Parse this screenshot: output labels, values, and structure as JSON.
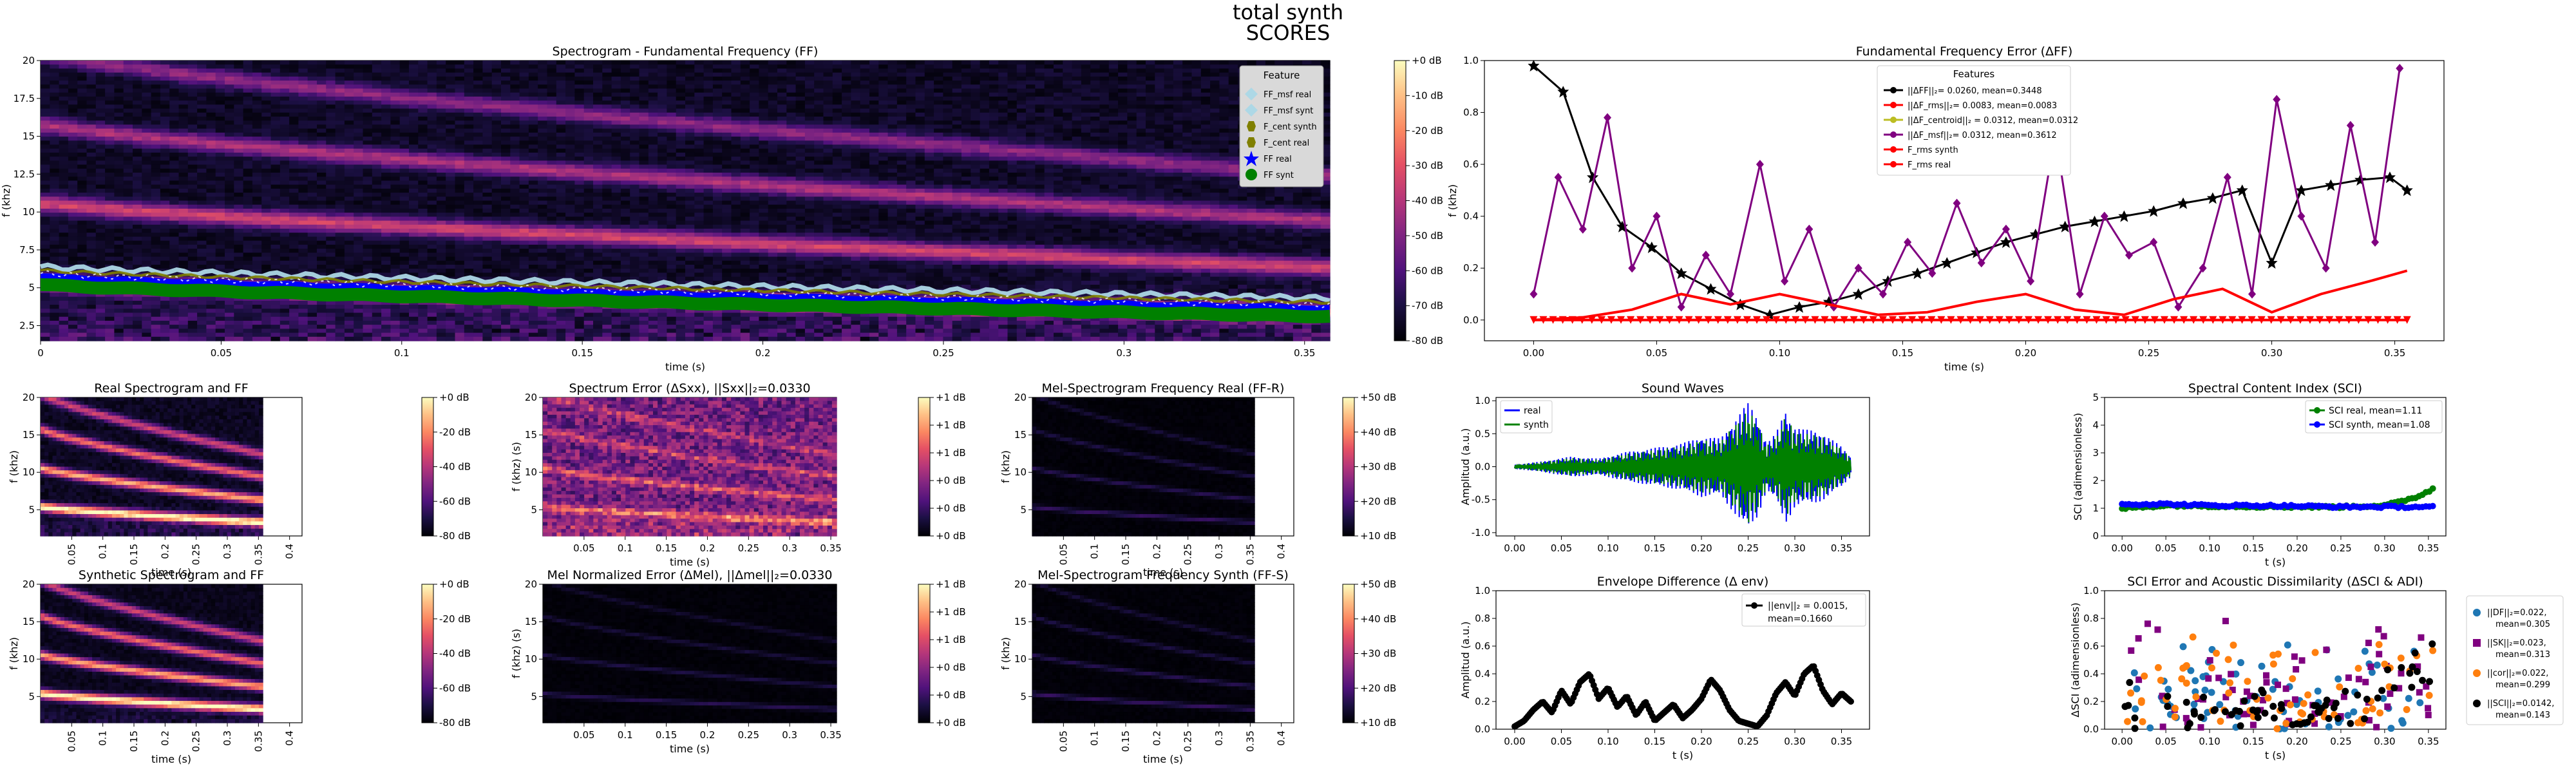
{
  "figure": {
    "title_line1": "total synth",
    "title_line2": "SCORES"
  },
  "colors": {
    "black": "#000000",
    "red": "#ff0000",
    "purple": "#800080",
    "yellow": "#bcbd22",
    "blue": "#0000ff",
    "green": "#008000",
    "lightblue": "#add8e6",
    "olive": "#808000",
    "c_tab_blue": "#1f77b4",
    "c_tab_orange": "#ff7f0e"
  },
  "chart_data": [
    {
      "id": "spec_main",
      "type": "heatmap",
      "title": "Spectrogram - Fundamental Frequency (FF)",
      "xlabel": "time (s)",
      "ylabel": "f (khz)",
      "xlim": [
        0,
        0.357
      ],
      "ylim": [
        1.5,
        20
      ],
      "xticks": [
        "0",
        "0.05",
        "0.1",
        "0.15",
        "0.2",
        "0.25",
        "0.3",
        "0.35"
      ],
      "yticks": [
        "2.5",
        "5",
        "7.5",
        "10",
        "12.5",
        "15",
        "17.5",
        "20"
      ],
      "colorbar": [
        "+0 dB",
        "-10 dB",
        "-20 dB",
        "-30 dB",
        "-40 dB",
        "-50 dB",
        "-60 dB",
        "-70 dB",
        "-80 dB"
      ],
      "legend_title": "Feature",
      "legend": [
        "FF_msf real",
        "FF_msf synt",
        "F_cent synth",
        "F_cent real",
        "FF real",
        "FF synt"
      ],
      "harmonics_khz": [
        {
          "start": 5.4,
          "end": 3.3
        },
        {
          "start": 10.6,
          "end": 6.3
        },
        {
          "start": 15.8,
          "end": 9.4
        },
        {
          "start": 20.5,
          "end": 12.4
        }
      ]
    },
    {
      "id": "ff_error",
      "type": "line",
      "title": "Fundamental Frequency Error (ΔFF)",
      "xlabel": "time (s)",
      "ylabel": "f (khz)",
      "xlim": [
        -0.02,
        0.37
      ],
      "ylim": [
        -0.08,
        1.0
      ],
      "xticks": [
        "0.00",
        "0.05",
        "0.10",
        "0.15",
        "0.20",
        "0.25",
        "0.30",
        "0.35"
      ],
      "yticks": [
        "0.0",
        "0.2",
        "0.4",
        "0.6",
        "0.8",
        "1.0"
      ],
      "legend_title": "Features",
      "legend": [
        "||ΔFF||₂= 0.0260, mean=0.3448",
        "||ΔF_rms||₂= 0.0083, mean=0.0083",
        "||ΔF_centroid||₂ = 0.0312, mean=0.0312",
        "||ΔF_msf||₂= 0.0312, mean=0.3612",
        "F_rms synth",
        "F_rms real"
      ],
      "series": [
        {
          "name": "||ΔFF||₂= 0.0260, mean=0.3448",
          "x": [
            0.0,
            0.012,
            0.024,
            0.036,
            0.048,
            0.06,
            0.072,
            0.084,
            0.096,
            0.108,
            0.12,
            0.132,
            0.144,
            0.156,
            0.168,
            0.18,
            0.192,
            0.204,
            0.216,
            0.228,
            0.24,
            0.252,
            0.264,
            0.276,
            0.288,
            0.3,
            0.312,
            0.324,
            0.336,
            0.348,
            0.355
          ],
          "y": [
            0.98,
            0.88,
            0.55,
            0.36,
            0.28,
            0.18,
            0.12,
            0.06,
            0.02,
            0.05,
            0.07,
            0.1,
            0.15,
            0.18,
            0.22,
            0.26,
            0.3,
            0.33,
            0.36,
            0.38,
            0.4,
            0.42,
            0.45,
            0.47,
            0.5,
            0.22,
            0.5,
            0.52,
            0.54,
            0.55,
            0.5
          ]
        },
        {
          "name": "||ΔF_msf||₂= 0.0312, mean=0.3612",
          "x": [
            0.0,
            0.01,
            0.02,
            0.03,
            0.04,
            0.05,
            0.06,
            0.07,
            0.08,
            0.092,
            0.102,
            0.112,
            0.122,
            0.132,
            0.142,
            0.152,
            0.162,
            0.172,
            0.182,
            0.192,
            0.202,
            0.212,
            0.222,
            0.232,
            0.242,
            0.252,
            0.262,
            0.272,
            0.282,
            0.292,
            0.302,
            0.312,
            0.322,
            0.332,
            0.342,
            0.352
          ],
          "y": [
            0.1,
            0.55,
            0.35,
            0.78,
            0.2,
            0.4,
            0.05,
            0.25,
            0.1,
            0.6,
            0.15,
            0.35,
            0.05,
            0.2,
            0.1,
            0.3,
            0.18,
            0.45,
            0.22,
            0.35,
            0.15,
            0.72,
            0.1,
            0.4,
            0.25,
            0.3,
            0.05,
            0.2,
            0.55,
            0.1,
            0.85,
            0.4,
            0.2,
            0.75,
            0.3,
            0.97
          ]
        },
        {
          "name": "F_rms real",
          "x": [
            0.0,
            0.02,
            0.04,
            0.06,
            0.08,
            0.1,
            0.12,
            0.14,
            0.16,
            0.18,
            0.2,
            0.22,
            0.24,
            0.26,
            0.28,
            0.3,
            0.32,
            0.34,
            0.355
          ],
          "y": [
            0.0,
            0.01,
            0.04,
            0.1,
            0.06,
            0.1,
            0.06,
            0.02,
            0.03,
            0.07,
            0.1,
            0.04,
            0.02,
            0.08,
            0.12,
            0.03,
            0.1,
            0.15,
            0.19
          ]
        }
      ]
    },
    {
      "id": "spec_real",
      "type": "heatmap",
      "title": "Real Spectrogram and FF",
      "xlabel": "time (s)",
      "ylabel": "f (khz)",
      "xlim": [
        0,
        0.42
      ],
      "ylim": [
        1.5,
        20
      ],
      "xticks": [
        "0.05",
        "0.1",
        "0.15",
        "0.2",
        "0.25",
        "0.3",
        "0.35",
        "0.4"
      ],
      "yticks": [
        "5",
        "10",
        "15",
        "20"
      ],
      "colorbar": [
        "+0 dB",
        "-20 dB",
        "-40 dB",
        "-60 dB",
        "-80 dB"
      ]
    },
    {
      "id": "spec_err",
      "type": "heatmap",
      "title": "Spectrum Error (ΔSxx), ||Sxx||₂=0.0330",
      "xlabel": "time (s)",
      "ylabel": "f (khz) (s)",
      "xlim": [
        0,
        0.357
      ],
      "ylim": [
        1.5,
        20
      ],
      "xticks": [
        "0.05",
        "0.1",
        "0.15",
        "0.2",
        "0.25",
        "0.3",
        "0.35"
      ],
      "yticks": [
        "5",
        "10",
        "15",
        "20"
      ],
      "colorbar": [
        "+1 dB",
        "+1 dB",
        "+1 dB",
        "+0 dB",
        "+0 dB",
        "+0 dB"
      ]
    },
    {
      "id": "mel_real",
      "type": "heatmap",
      "title": "Mel-Spectrogram Frequency Real (FF-R)",
      "xlabel": "time (s)",
      "ylabel": "f (khz)",
      "xlim": [
        0,
        0.42
      ],
      "ylim": [
        1.5,
        20
      ],
      "xticks": [
        "0.05",
        "0.1",
        "0.15",
        "0.2",
        "0.25",
        "0.3",
        "0.35",
        "0.4"
      ],
      "yticks": [
        "5",
        "10",
        "15",
        "20"
      ],
      "colorbar": [
        "+50 dB",
        "+40 dB",
        "+30 dB",
        "+20 dB",
        "+10 dB"
      ]
    },
    {
      "id": "waves",
      "type": "line",
      "title": "Sound Waves",
      "xlabel": "",
      "ylabel": "Amplitud (a.u.)",
      "xlim": [
        -0.02,
        0.38
      ],
      "ylim": [
        -1.05,
        1.05
      ],
      "xticks": [
        "0.00",
        "0.05",
        "0.10",
        "0.15",
        "0.20",
        "0.25",
        "0.30",
        "0.35"
      ],
      "yticks": [
        "-1.0",
        "-0.5",
        "0.0",
        "0.5",
        "1.0"
      ],
      "legend": [
        "real",
        "synth"
      ],
      "envelope": {
        "t": [
          0.0,
          0.03,
          0.06,
          0.09,
          0.12,
          0.15,
          0.18,
          0.2,
          0.22,
          0.24,
          0.25,
          0.26,
          0.27,
          0.28,
          0.29,
          0.3,
          0.31,
          0.32,
          0.33,
          0.34,
          0.35,
          0.36
        ],
        "a": [
          0.03,
          0.08,
          0.15,
          0.12,
          0.22,
          0.28,
          0.35,
          0.45,
          0.42,
          0.78,
          0.95,
          0.75,
          0.35,
          0.5,
          0.85,
          0.6,
          0.55,
          0.55,
          0.5,
          0.4,
          0.3,
          0.15
        ]
      }
    },
    {
      "id": "sci",
      "type": "scatter",
      "title": "Spectral Content Index (SCI)",
      "xlabel": "t (s)",
      "ylabel": "SCI (adimensionless)",
      "xlim": [
        -0.02,
        0.37
      ],
      "ylim": [
        0,
        5
      ],
      "xticks": [
        "0.00",
        "0.05",
        "0.10",
        "0.15",
        "0.20",
        "0.25",
        "0.30",
        "0.35"
      ],
      "yticks": [
        "0",
        "1",
        "2",
        "3",
        "4",
        "5"
      ],
      "series": [
        {
          "name": "SCI real,   mean=1.11",
          "x": [
            0.0,
            0.05,
            0.1,
            0.15,
            0.2,
            0.25,
            0.3,
            0.32,
            0.34,
            0.355
          ],
          "y": [
            1.0,
            1.1,
            1.08,
            1.06,
            1.05,
            1.05,
            1.1,
            1.25,
            1.45,
            1.7
          ]
        },
        {
          "name": "SCI synth, mean=1.08",
          "x": [
            0.0,
            0.05,
            0.1,
            0.15,
            0.2,
            0.25,
            0.3,
            0.355
          ],
          "y": [
            1.15,
            1.15,
            1.1,
            1.1,
            1.08,
            1.05,
            1.05,
            1.05
          ]
        }
      ]
    },
    {
      "id": "spec_synth",
      "type": "heatmap",
      "title": "Synthetic Spectrogram and FF",
      "xlabel": "time (s)",
      "ylabel": "f (khz)",
      "xlim": [
        0,
        0.42
      ],
      "ylim": [
        1.5,
        20
      ],
      "xticks": [
        "0.05",
        "0.1",
        "0.15",
        "0.2",
        "0.25",
        "0.3",
        "0.35",
        "0.4"
      ],
      "yticks": [
        "5",
        "10",
        "15",
        "20"
      ],
      "colorbar": [
        "+0 dB",
        "-20 dB",
        "-40 dB",
        "-60 dB",
        "-80 dB"
      ]
    },
    {
      "id": "mel_err",
      "type": "heatmap",
      "title": "Mel Normalized Error (ΔMel), ||Δmel||₂=0.0330",
      "xlabel": "time (s)",
      "ylabel": "f (khz) (s)",
      "xlim": [
        0,
        0.357
      ],
      "ylim": [
        1.5,
        20
      ],
      "xticks": [
        "0.05",
        "0.1",
        "0.15",
        "0.2",
        "0.25",
        "0.3",
        "0.35"
      ],
      "yticks": [
        "5",
        "10",
        "15",
        "20"
      ],
      "colorbar": [
        "+1 dB",
        "+1 dB",
        "+1 dB",
        "+0 dB",
        "+0 dB",
        "+0 dB"
      ]
    },
    {
      "id": "mel_synth",
      "type": "heatmap",
      "title": "Mel-Spectrogram Frequency Synth (FF-S)",
      "xlabel": "time (s)",
      "ylabel": "f (khz)",
      "xlim": [
        0,
        0.42
      ],
      "ylim": [
        1.5,
        20
      ],
      "xticks": [
        "0.05",
        "0.1",
        "0.15",
        "0.2",
        "0.25",
        "0.3",
        "0.35",
        "0.4"
      ],
      "yticks": [
        "5",
        "10",
        "15",
        "20"
      ],
      "colorbar": [
        "+50 dB",
        "+40 dB",
        "+30 dB",
        "+20 dB",
        "+10 dB"
      ]
    },
    {
      "id": "env",
      "type": "line",
      "title": "Envelope Difference (Δ env)",
      "xlabel": "t (s)",
      "ylabel": "Amplitud (a.u.)",
      "xlim": [
        -0.02,
        0.38
      ],
      "ylim": [
        0,
        1.0
      ],
      "xticks": [
        "0.00",
        "0.05",
        "0.10",
        "0.15",
        "0.20",
        "0.25",
        "0.30",
        "0.35"
      ],
      "yticks": [
        "0.0",
        "0.2",
        "0.4",
        "0.6",
        "0.8",
        "1.0"
      ],
      "legend": [
        "||env||₂ = 0.0015,",
        "mean=0.1660"
      ],
      "series": [
        {
          "name": "||env||₂ = 0.0015, mean=0.1660",
          "x": [
            0.0,
            0.01,
            0.02,
            0.03,
            0.04,
            0.05,
            0.06,
            0.07,
            0.08,
            0.09,
            0.1,
            0.11,
            0.12,
            0.13,
            0.14,
            0.15,
            0.16,
            0.17,
            0.18,
            0.19,
            0.2,
            0.21,
            0.22,
            0.23,
            0.24,
            0.25,
            0.26,
            0.27,
            0.28,
            0.29,
            0.3,
            0.31,
            0.32,
            0.33,
            0.34,
            0.35,
            0.36
          ],
          "y": [
            0.02,
            0.06,
            0.14,
            0.2,
            0.12,
            0.28,
            0.18,
            0.34,
            0.4,
            0.22,
            0.3,
            0.16,
            0.24,
            0.1,
            0.2,
            0.06,
            0.12,
            0.18,
            0.08,
            0.14,
            0.22,
            0.36,
            0.28,
            0.14,
            0.06,
            0.04,
            0.02,
            0.1,
            0.26,
            0.34,
            0.24,
            0.4,
            0.46,
            0.28,
            0.18,
            0.26,
            0.2
          ]
        }
      ]
    },
    {
      "id": "sci_err",
      "type": "scatter",
      "title": "SCI Error and Acoustic Dissimilarity (ΔSCI & ADI)",
      "xlabel": "t (s)",
      "ylabel": "ΔSCI (adimensionless)",
      "xlim": [
        -0.02,
        0.37
      ],
      "ylim": [
        0,
        1.0
      ],
      "xticks": [
        "0.00",
        "0.05",
        "0.10",
        "0.15",
        "0.20",
        "0.25",
        "0.30",
        "0.35"
      ],
      "yticks": [
        "0.0",
        "0.2",
        "0.4",
        "0.6",
        "0.8",
        "1.0"
      ],
      "legend": [
        [
          "||DF||₂=0.022,",
          "mean=0.305"
        ],
        [
          "||SK||₂=0.023,",
          "mean=0.313"
        ],
        [
          "||cor||₂=0.022,",
          "mean=0.299"
        ],
        [
          "||SCI||₂=0.0142,",
          "mean=0.143"
        ]
      ]
    }
  ]
}
